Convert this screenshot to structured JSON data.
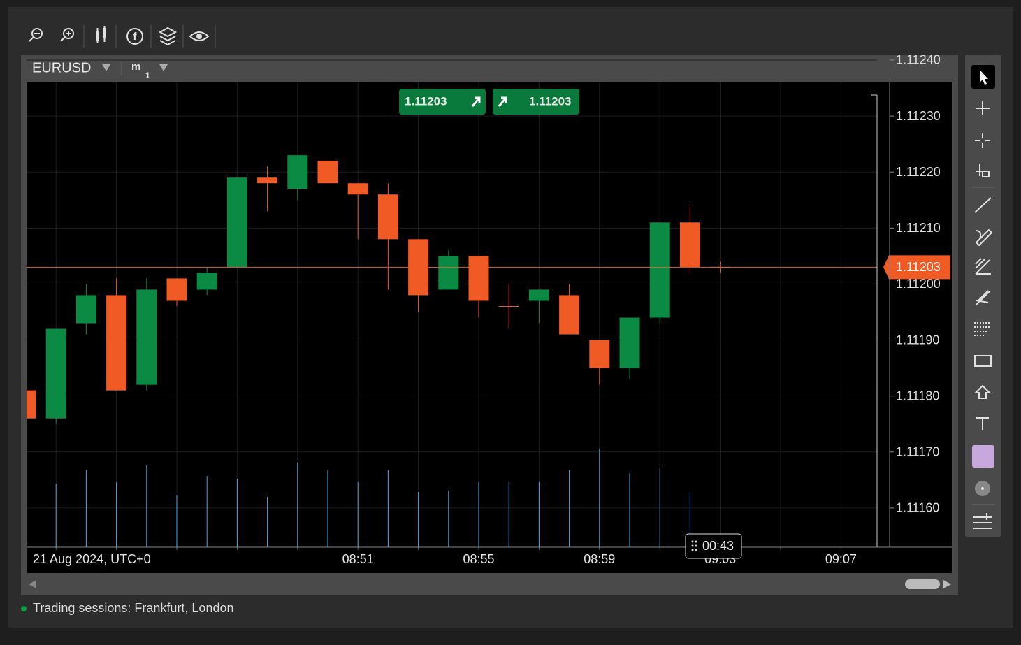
{
  "symbol": "EURUSD",
  "timeframe": {
    "unit": "m",
    "count": 1
  },
  "quote": {
    "bid": 1.11203,
    "ask": 1.11203
  },
  "footer": {
    "sessions": "Trading sessions: Frankfurt, London"
  },
  "chart_data": {
    "type": "candlestick",
    "date_label": "21 Aug 2024, UTC+0",
    "countdown": "00:43",
    "categories": [
      null,
      null,
      null,
      null,
      null,
      null,
      null,
      null,
      null,
      null,
      null,
      "08:51",
      null,
      null,
      null,
      "08:55",
      null,
      null,
      null,
      "08:59",
      null,
      null,
      null,
      "09:03",
      null,
      null,
      null,
      "09:07",
      null
    ],
    "open": [
      1.11181,
      1.11176,
      1.11193,
      1.11198,
      1.11182,
      1.11201,
      1.11199,
      1.11203,
      1.11219,
      1.11217,
      1.11222,
      1.11218,
      1.11216,
      1.11208,
      1.11199,
      1.11205,
      1.11196,
      1.11197,
      1.11198,
      1.1119,
      1.11185,
      1.11194,
      1.11211,
      1.11203,
      null,
      null,
      null,
      null,
      null
    ],
    "high": [
      1.11183,
      1.11192,
      1.112,
      1.11201,
      1.11201,
      1.11201,
      1.11203,
      1.11219,
      1.11221,
      1.11223,
      1.11222,
      1.11218,
      1.11218,
      1.11208,
      1.11206,
      1.11205,
      1.112,
      1.11199,
      1.112,
      1.1119,
      1.11194,
      1.11211,
      1.11214,
      1.11204,
      null,
      null,
      null,
      null,
      null
    ],
    "low": [
      1.11176,
      1.11175,
      1.11191,
      1.11181,
      1.11181,
      1.11196,
      1.11198,
      1.11203,
      1.11213,
      1.11215,
      1.11218,
      1.11208,
      1.11199,
      1.11195,
      1.11199,
      1.11194,
      1.11192,
      1.11193,
      1.11191,
      1.11182,
      1.11183,
      1.11193,
      1.11202,
      1.11202,
      null,
      null,
      null,
      null,
      null
    ],
    "close": [
      1.11176,
      1.11192,
      1.11198,
      1.11181,
      1.11199,
      1.11197,
      1.11202,
      1.11219,
      1.11218,
      1.11223,
      1.11218,
      1.11216,
      1.11208,
      1.11198,
      1.11205,
      1.11197,
      1.11196,
      1.11199,
      1.11191,
      1.11185,
      1.11194,
      1.11211,
      1.11203,
      1.11203,
      null,
      null,
      null,
      null,
      null
    ],
    "volume": [
      91,
      91,
      111,
      93,
      117,
      74,
      102,
      98,
      72,
      121,
      110,
      93,
      110,
      79,
      81,
      93,
      93,
      93,
      111,
      141,
      106,
      113,
      79,
      null,
      null,
      null,
      null,
      null,
      null
    ],
    "last_price": 1.11203,
    "ylim": [
      1.11153,
      1.11236
    ],
    "yticks": [
      {
        "value": 1.1116,
        "label": "1.11160"
      },
      {
        "value": 1.1117,
        "label": "1.11170"
      },
      {
        "value": 1.1118,
        "label": "1.11180"
      },
      {
        "value": 1.1119,
        "label": "1.11190"
      },
      {
        "value": 1.112,
        "label": "1.11200"
      },
      {
        "value": 1.1121,
        "label": "1.11210"
      },
      {
        "value": 1.1122,
        "label": "1.11220"
      },
      {
        "value": 1.1123,
        "label": "1.11230"
      },
      {
        "value": 1.1124,
        "label": "1.11240"
      }
    ],
    "up_color": "#0a8a43",
    "down_color": "#f05a24",
    "volume_color": "#4aa8e0",
    "grid": true
  }
}
